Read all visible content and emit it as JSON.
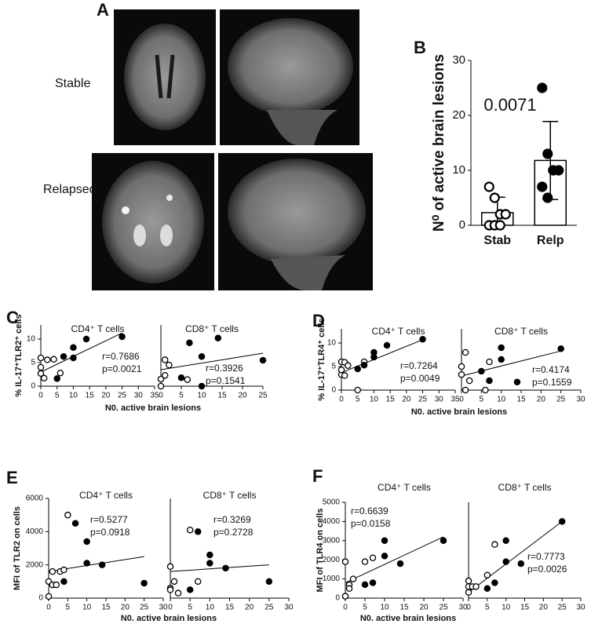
{
  "figure": {
    "panel_a": {
      "label": "A",
      "rows": [
        "Stable",
        "Relapsed"
      ]
    }
  },
  "chart_data": [
    {
      "type": "bar",
      "panel": "B",
      "ylabel": "N⁰ of active brain lesions",
      "annotation": "0.0071",
      "categories": [
        "Stab",
        "Relp"
      ],
      "values": [
        2.3,
        11.8
      ],
      "errors": [
        2.8,
        7.1
      ],
      "points": [
        [
          7,
          5,
          2,
          2,
          0,
          0,
          0
        ],
        [
          25,
          13,
          10,
          10,
          7,
          5
        ]
      ],
      "markers": [
        "open",
        "filled"
      ],
      "color": "#000000",
      "ylim": [
        0,
        30
      ],
      "yticks": [
        0,
        10,
        20,
        30
      ]
    },
    {
      "type": "scatter",
      "panel": "C",
      "title": "CD4⁺ T cells",
      "ylabel": "% IL-17⁺TLR2⁺ cells",
      "xlabel": "N0. active brain lesions",
      "xlim": [
        0,
        35
      ],
      "xticks": [
        0,
        5,
        10,
        15,
        20,
        25,
        30,
        35
      ],
      "ylim": [
        0,
        13
      ],
      "yticks": [
        0,
        5,
        10
      ],
      "series": [
        {
          "marker": "open",
          "x": [
            0,
            0,
            0,
            1,
            2,
            4,
            6
          ],
          "values": [
            6,
            4,
            2.7,
            1.7,
            5.6,
            5.7,
            2.8
          ]
        },
        {
          "marker": "filled",
          "x": [
            5,
            7,
            10,
            10,
            14,
            25
          ],
          "values": [
            1.6,
            6.3,
            8.2,
            6,
            10,
            10.5
          ]
        }
      ],
      "fit": {
        "x": [
          0,
          25
        ],
        "values": [
          3,
          11.3
        ]
      },
      "annotations": [
        "r=0.7686",
        "p=0.0021"
      ]
    },
    {
      "type": "scatter",
      "title": "CD8⁺ T cells",
      "xlim": [
        0,
        25
      ],
      "xticks": [
        0,
        5,
        10,
        15,
        20,
        25
      ],
      "ylim": [
        0,
        13
      ],
      "series": [
        {
          "marker": "open",
          "x": [
            0,
            1,
            1,
            2,
            6.5,
            0
          ],
          "values": [
            1.5,
            2.3,
            5.6,
            4.5,
            1.4,
            0
          ]
        },
        {
          "marker": "filled",
          "x": [
            5,
            7,
            10,
            10,
            14,
            25
          ],
          "values": [
            1.8,
            9.2,
            6.3,
            0,
            10.2,
            5.5
          ]
        }
      ],
      "fit": {
        "x": [
          0,
          25
        ],
        "values": [
          3.5,
          7
        ]
      },
      "annotations": [
        "r=0.3926",
        "p=0.1541"
      ]
    },
    {
      "type": "scatter",
      "panel": "D",
      "title": "CD4⁺ T cells",
      "ylabel": "% IL-17⁺TLR4⁺ cells",
      "xlabel": "N0. active brain lesions",
      "xlim": [
        0,
        35
      ],
      "xticks": [
        0,
        5,
        10,
        15,
        20,
        25,
        30,
        35
      ],
      "ylim": [
        0,
        13
      ],
      "yticks": [
        0,
        5,
        10
      ],
      "series": [
        {
          "marker": "open",
          "x": [
            0,
            0,
            1,
            1,
            2,
            0,
            7,
            5
          ],
          "values": [
            6,
            3.3,
            3.1,
            5.9,
            5.2,
            4.3,
            6,
            0
          ]
        },
        {
          "marker": "filled",
          "x": [
            5,
            7,
            10,
            10,
            14,
            25
          ],
          "values": [
            4.5,
            5.3,
            7,
            8,
            9.5,
            10.8
          ]
        }
      ],
      "fit": {
        "x": [
          0,
          25
        ],
        "values": [
          3.7,
          10.7
        ]
      },
      "annotations": [
        "r=0.7264",
        "p=0.0049"
      ]
    },
    {
      "type": "scatter",
      "title": "CD8⁺ T cells",
      "xlim": [
        0,
        30
      ],
      "xticks": [
        0,
        5,
        10,
        15,
        20,
        25,
        30
      ],
      "ylim": [
        0,
        13
      ],
      "series": [
        {
          "marker": "open",
          "x": [
            0,
            1,
            0,
            1,
            2,
            7,
            6
          ],
          "values": [
            5,
            8,
            3.3,
            0,
            2,
            6,
            0
          ]
        },
        {
          "marker": "filled",
          "x": [
            5,
            7,
            10,
            10,
            14,
            25
          ],
          "values": [
            4,
            2,
            9,
            6.5,
            1.7,
            8.8
          ]
        }
      ],
      "fit": {
        "x": [
          0,
          25
        ],
        "values": [
          3,
          8.3
        ]
      },
      "annotations": [
        "r=0.4174",
        "p=0.1559"
      ]
    },
    {
      "type": "scatter",
      "panel": "E",
      "title": "CD4⁺ T cells",
      "ylabel": "MFI of TLR2 on cells",
      "xlabel": "N0. active brain lesions",
      "xlim": [
        0,
        30
      ],
      "xticks": [
        0,
        5,
        10,
        15,
        20,
        25,
        30
      ],
      "ylim": [
        0,
        6000
      ],
      "yticks": [
        0,
        2000,
        4000,
        6000
      ],
      "series": [
        {
          "marker": "open",
          "x": [
            0,
            1,
            1,
            2,
            3,
            4,
            5,
            0
          ],
          "values": [
            1000,
            1600,
            800,
            800,
            1600,
            1700,
            5000,
            100
          ]
        },
        {
          "marker": "filled",
          "x": [
            4,
            7,
            10,
            10,
            14,
            25
          ],
          "values": [
            1000,
            4500,
            3400,
            2100,
            2000,
            900
          ]
        }
      ],
      "fit": {
        "x": [
          0,
          25
        ],
        "values": [
          1600,
          2500
        ]
      },
      "annotations": [
        "r=0.5277",
        "p=0.0918"
      ]
    },
    {
      "type": "scatter",
      "title": "CD8⁺ T cells",
      "xlim": [
        0,
        30
      ],
      "xticks": [
        0,
        5,
        10,
        15,
        20,
        25,
        30
      ],
      "ylim": [
        0,
        6000
      ],
      "series": [
        {
          "marker": "open",
          "x": [
            0,
            0,
            1,
            2,
            5,
            7,
            0
          ],
          "values": [
            1900,
            600,
            1000,
            300,
            4100,
            1000,
            500
          ]
        },
        {
          "marker": "filled",
          "x": [
            5,
            7,
            10,
            10,
            14,
            25
          ],
          "values": [
            500,
            4000,
            2600,
            2100,
            1800,
            1000
          ]
        }
      ],
      "fit": {
        "x": [
          0,
          25
        ],
        "values": [
          1600,
          2000
        ]
      },
      "annotations": [
        "r=0.3269",
        "p=0.2728"
      ]
    },
    {
      "type": "scatter",
      "panel": "F",
      "title": "CD4⁺ T cells",
      "ylabel": "MFI of TLR4 on cells",
      "xlabel": "N0. active brain lesions",
      "xlim": [
        0,
        30
      ],
      "xticks": [
        0,
        5,
        10,
        15,
        20,
        25,
        30
      ],
      "ylim": [
        0,
        5000
      ],
      "yticks": [
        0,
        1000,
        2000,
        3000,
        4000,
        5000
      ],
      "series": [
        {
          "marker": "open",
          "x": [
            0,
            1,
            1,
            0,
            2,
            5,
            7
          ],
          "values": [
            1900,
            700,
            500,
            100,
            1000,
            1900,
            2100
          ]
        },
        {
          "marker": "filled",
          "x": [
            5,
            7,
            10,
            10,
            14,
            25
          ],
          "values": [
            700,
            800,
            3000,
            2200,
            1800,
            3000
          ]
        }
      ],
      "fit": {
        "x": [
          0,
          25
        ],
        "values": [
          800,
          3200
        ]
      },
      "annotations": [
        "r=0.6639",
        "p=0.0158"
      ]
    },
    {
      "type": "scatter",
      "title": "CD8⁺ T cells",
      "xlim": [
        0,
        30
      ],
      "xticks": [
        0,
        5,
        10,
        15,
        20,
        25,
        30
      ],
      "ylim": [
        0,
        5000
      ],
      "series": [
        {
          "marker": "open",
          "x": [
            0,
            0,
            1,
            2,
            5,
            7,
            0
          ],
          "values": [
            900,
            600,
            600,
            600,
            1200,
            2800,
            300
          ]
        },
        {
          "marker": "filled",
          "x": [
            5,
            7,
            10,
            10,
            14,
            25
          ],
          "values": [
            500,
            800,
            3000,
            1900,
            1800,
            4000
          ]
        }
      ],
      "fit": {
        "x": [
          0,
          25
        ],
        "values": [
          300,
          4000
        ]
      },
      "annotations": [
        "r=0.7773",
        "p=0.0026"
      ]
    }
  ]
}
